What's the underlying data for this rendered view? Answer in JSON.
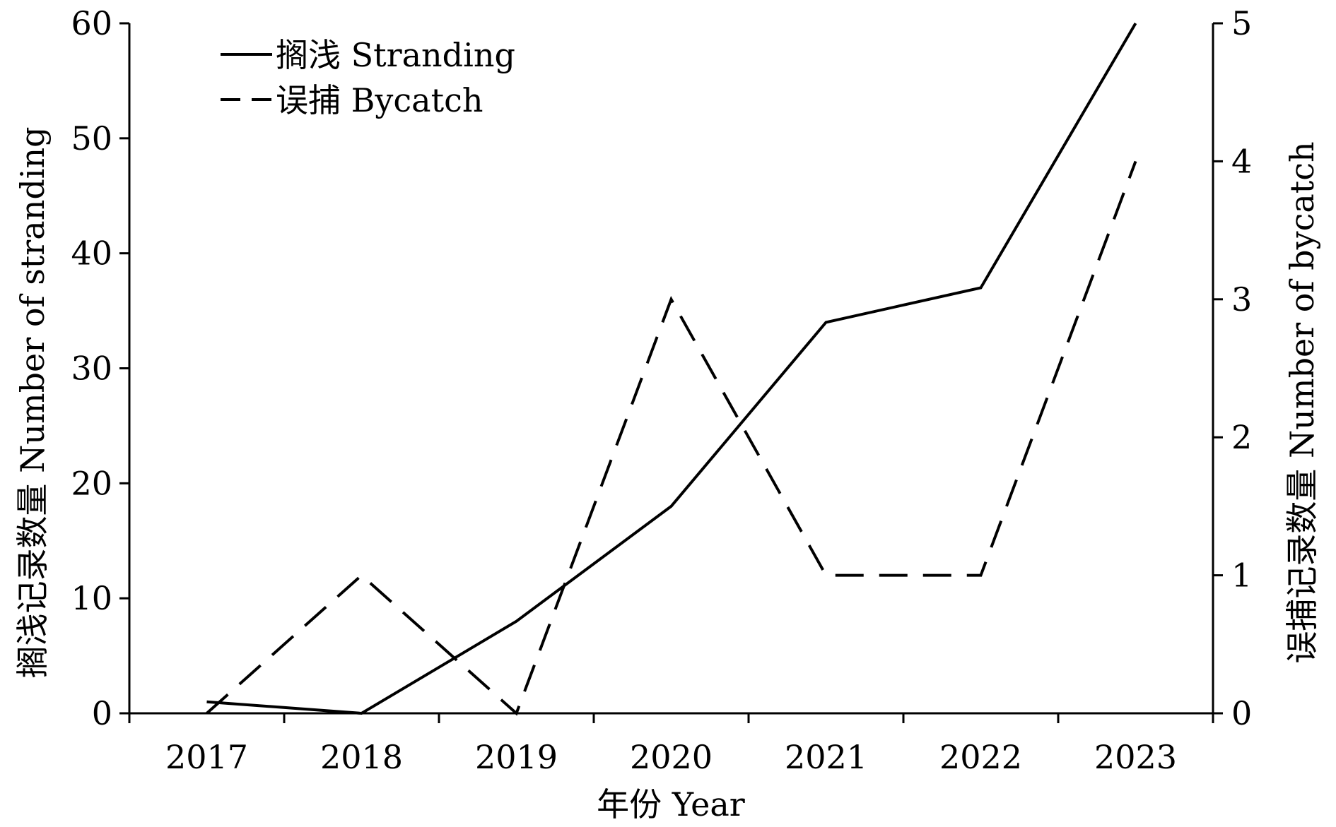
{
  "chart_data": {
    "type": "line",
    "xlabel": "年份 Year",
    "ylabel_left": "搁浅记录数量 Number of stranding",
    "ylabel_right": "误捕记录数量 Number of bycatch",
    "x": [
      "2017",
      "2018",
      "2019",
      "2020",
      "2021",
      "2022",
      "2023"
    ],
    "y_left_range": [
      0,
      60
    ],
    "y_left_ticks": [
      0,
      10,
      20,
      30,
      40,
      50,
      60
    ],
    "y_right_range": [
      0,
      5
    ],
    "y_right_ticks": [
      0,
      1,
      2,
      3,
      4,
      5
    ],
    "grid": false,
    "legend_position": "top-left",
    "series": [
      {
        "name": "搁浅 Stranding",
        "axis": "left",
        "style": "solid",
        "color": "#000000",
        "values": [
          1,
          0,
          8,
          18,
          34,
          37,
          60
        ]
      },
      {
        "name": "误捕 Bycatch",
        "axis": "right",
        "style": "dashed",
        "color": "#000000",
        "values": [
          0,
          1,
          0,
          3,
          1,
          1,
          4
        ]
      }
    ]
  }
}
